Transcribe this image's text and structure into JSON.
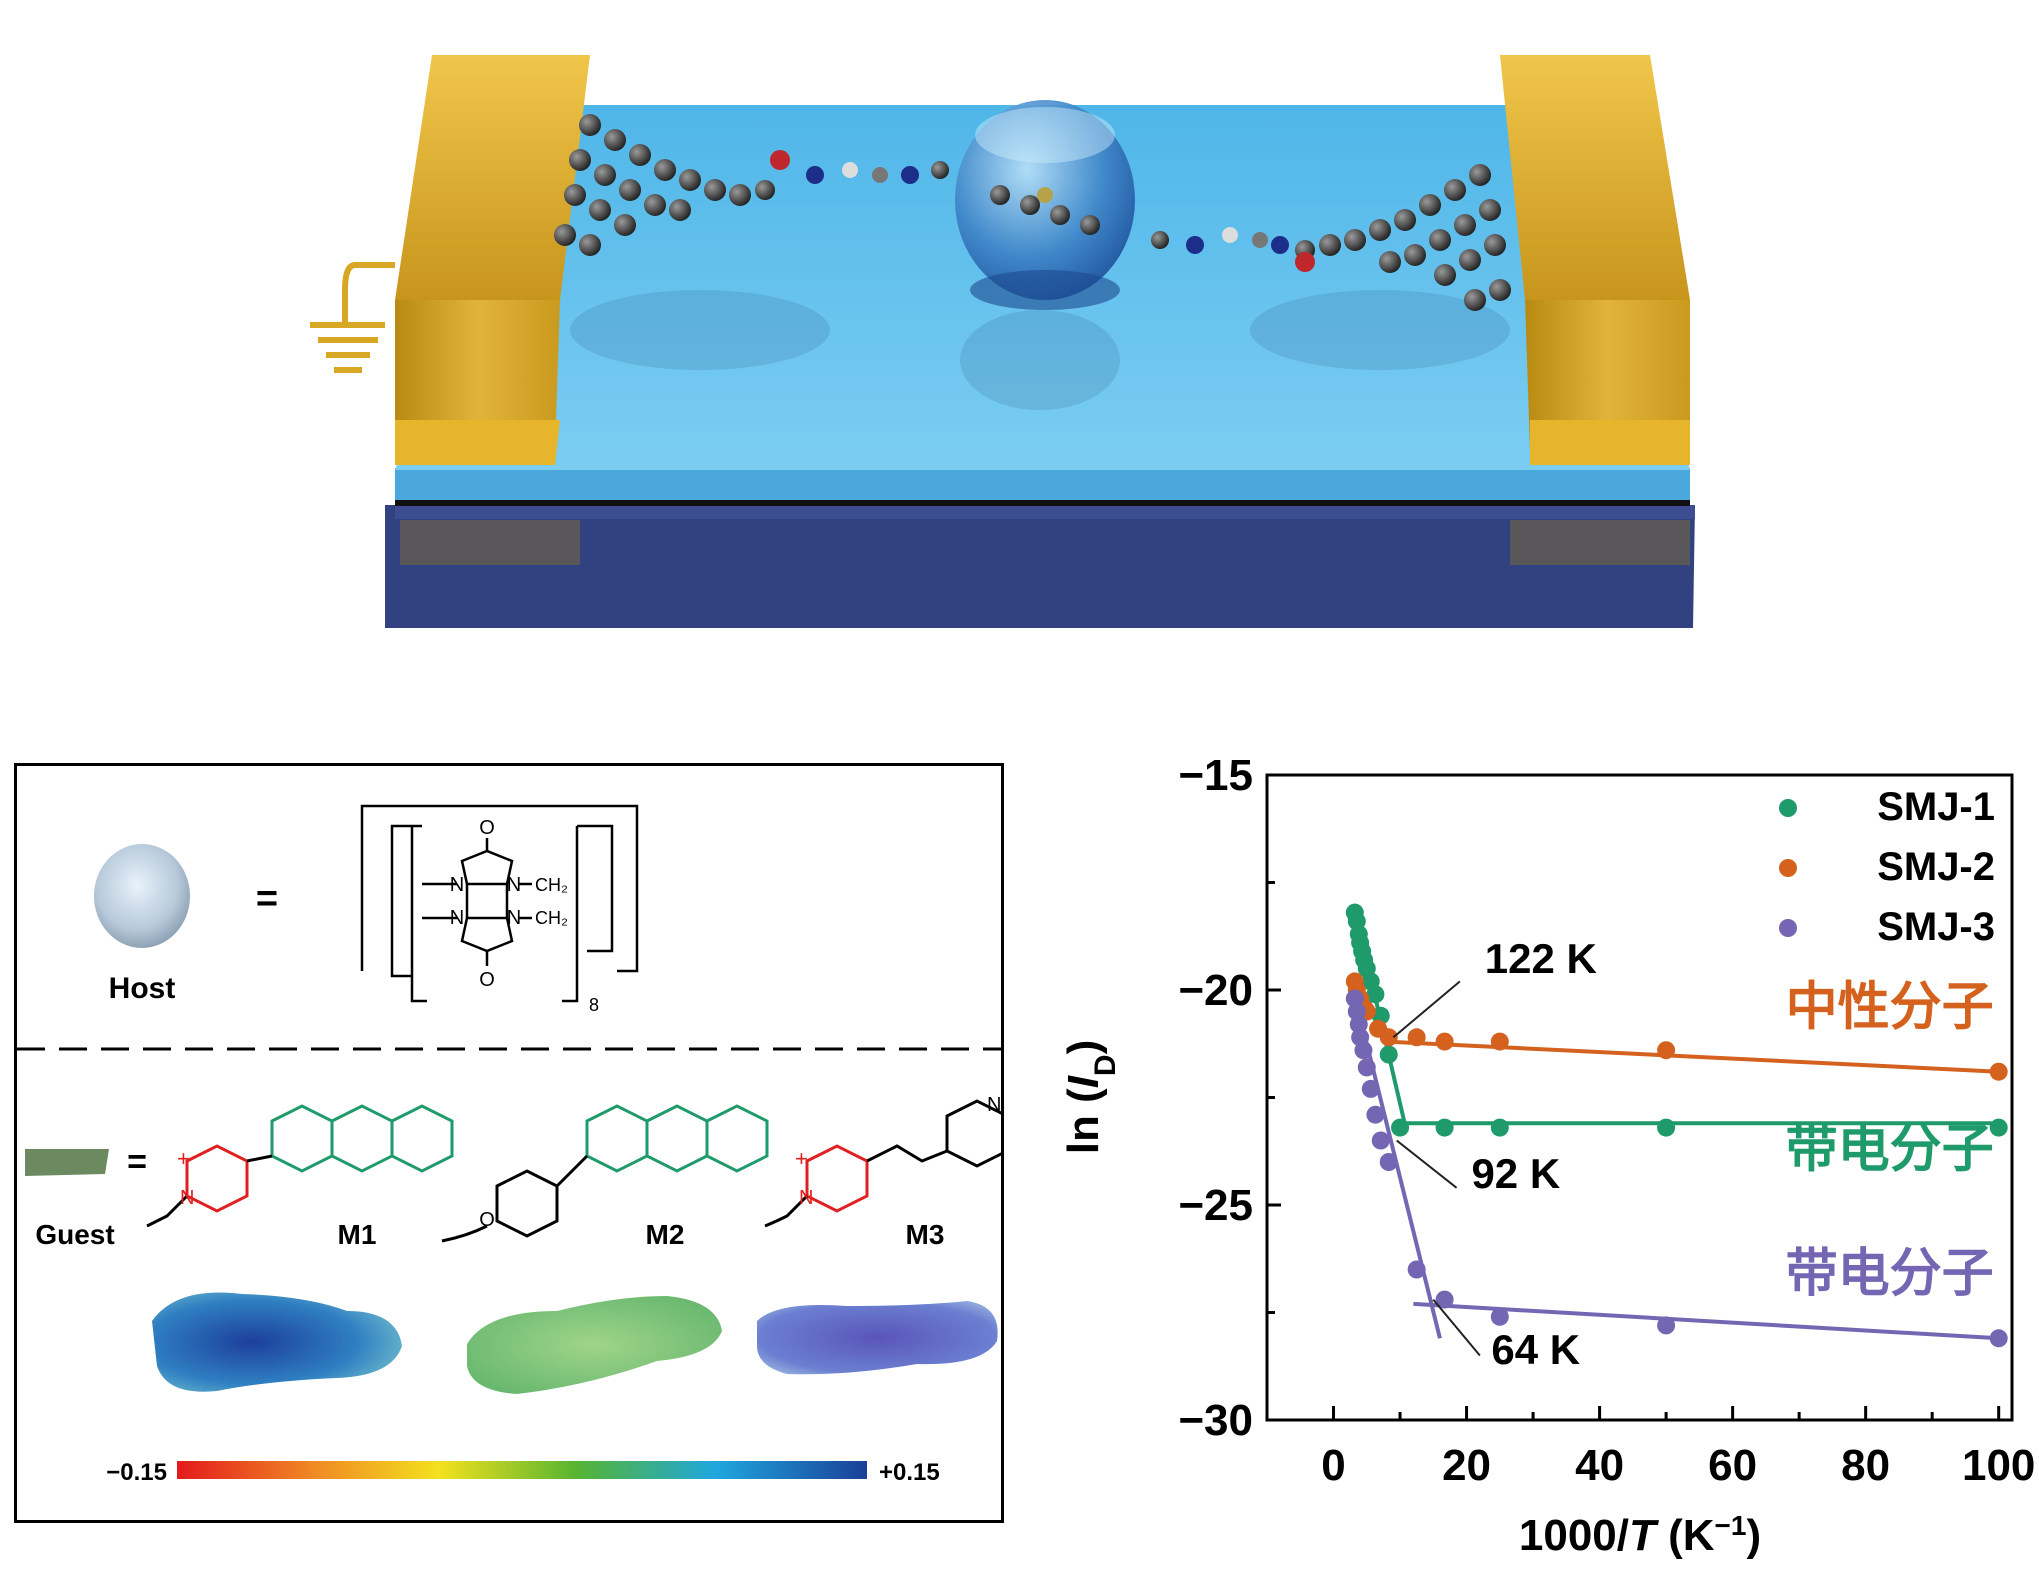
{
  "host_panel": {
    "host_label": "Host",
    "equals": "=",
    "cb_atoms": {
      "o_top": "O",
      "o_bot": "O",
      "n1": "N",
      "n2": "N",
      "n3": "N",
      "n4": "N",
      "ch2_a": "CH₂",
      "ch2_b": "CH₂",
      "subscript": "8"
    }
  },
  "guest_panel": {
    "guest_label": "Guest",
    "equals": "=",
    "molecules": [
      {
        "label": "M1",
        "charge": "+",
        "n_atom": "N"
      },
      {
        "label": "M2",
        "o_atom": "O"
      },
      {
        "label": "M3",
        "charge": "+",
        "n_atom": "N",
        "n_atom2": "N"
      }
    ],
    "scale": {
      "min_label": "−0.15",
      "max_label": "+0.15"
    }
  },
  "chart_data": {
    "type": "scatter",
    "xlabel": "1000/T (K⁻¹)",
    "ylabel": "ln (I_D)",
    "xlim": [
      -10,
      102
    ],
    "ylim": [
      -30,
      -15
    ],
    "x_ticks": [
      0,
      20,
      40,
      60,
      80,
      100
    ],
    "y_ticks": [
      -15,
      -20,
      -25,
      -30
    ],
    "x_tick_labels": [
      "0",
      "20",
      "40",
      "60",
      "80",
      "100"
    ],
    "y_tick_labels": [
      "−15",
      "−20",
      "−25",
      "−30"
    ],
    "legend_position": "top-right",
    "series": [
      {
        "name": "SMJ-1",
        "color": "#1f9a6a",
        "x": [
          3.2,
          3.5,
          3.8,
          4.0,
          4.3,
          4.6,
          5.0,
          5.6,
          6.3,
          7.1,
          8.3,
          10,
          16.7,
          25,
          50,
          100
        ],
        "y": [
          -18.2,
          -18.4,
          -18.7,
          -18.9,
          -19.1,
          -19.3,
          -19.5,
          -19.8,
          -20.1,
          -20.6,
          -21.5,
          -23.2,
          -23.2,
          -23.2,
          -23.2,
          -23.2
        ]
      },
      {
        "name": "SMJ-2",
        "color": "#d4611e",
        "x": [
          3.2,
          3.5,
          4.0,
          5.0,
          6.7,
          8.3,
          12.5,
          16.7,
          25,
          50,
          100
        ],
        "y": [
          -19.8,
          -20.0,
          -20.2,
          -20.5,
          -20.9,
          -21.1,
          -21.1,
          -21.2,
          -21.2,
          -21.4,
          -21.9
        ],
        "line_split": 8.3
      },
      {
        "name": "SMJ-3",
        "color": "#7466b3",
        "x": [
          3.2,
          3.5,
          3.8,
          4.0,
          4.5,
          5.0,
          5.6,
          6.3,
          7.1,
          8.3,
          12.5,
          16.7,
          25,
          50,
          100
        ],
        "y": [
          -20.2,
          -20.5,
          -20.8,
          -21.1,
          -21.4,
          -21.8,
          -22.3,
          -22.9,
          -23.5,
          -24.0,
          -26.5,
          -27.2,
          -27.6,
          -27.8,
          -28.1
        ]
      }
    ],
    "fit_lines": [
      {
        "series": "SMJ-1",
        "segments": [
          [
            [
              3.0,
              -18.0
            ],
            [
              11.0,
              -23.3
            ]
          ],
          [
            [
              10.0,
              -23.1
            ],
            [
              100,
              -23.1
            ]
          ]
        ]
      },
      {
        "series": "SMJ-2",
        "segments": [
          [
            [
              3.0,
              -19.7
            ],
            [
              9.0,
              -21.2
            ]
          ],
          [
            [
              8.0,
              -21.2
            ],
            [
              100,
              -21.9
            ]
          ]
        ]
      },
      {
        "series": "SMJ-3",
        "segments": [
          [
            [
              3.0,
              -20.0
            ],
            [
              16.0,
              -28.1
            ]
          ],
          [
            [
              12.0,
              -27.3
            ],
            [
              100,
              -28.1
            ]
          ]
        ]
      }
    ],
    "annotations": [
      {
        "text": "122 K",
        "x": 28,
        "y": -19.6
      },
      {
        "text": "92 K",
        "x": 26,
        "y": -24.6
      },
      {
        "text": "64 K",
        "x": 29,
        "y": -28.7
      },
      {
        "text": "中性分子",
        "x": 86,
        "y": -20.8,
        "color": "#d4611e"
      },
      {
        "text": "带电分子",
        "x": 86,
        "y": -24.1,
        "color": "#1f9a6a"
      },
      {
        "text": "带电分子",
        "x": 86,
        "y": -27.0,
        "color": "#7466b3"
      }
    ]
  }
}
